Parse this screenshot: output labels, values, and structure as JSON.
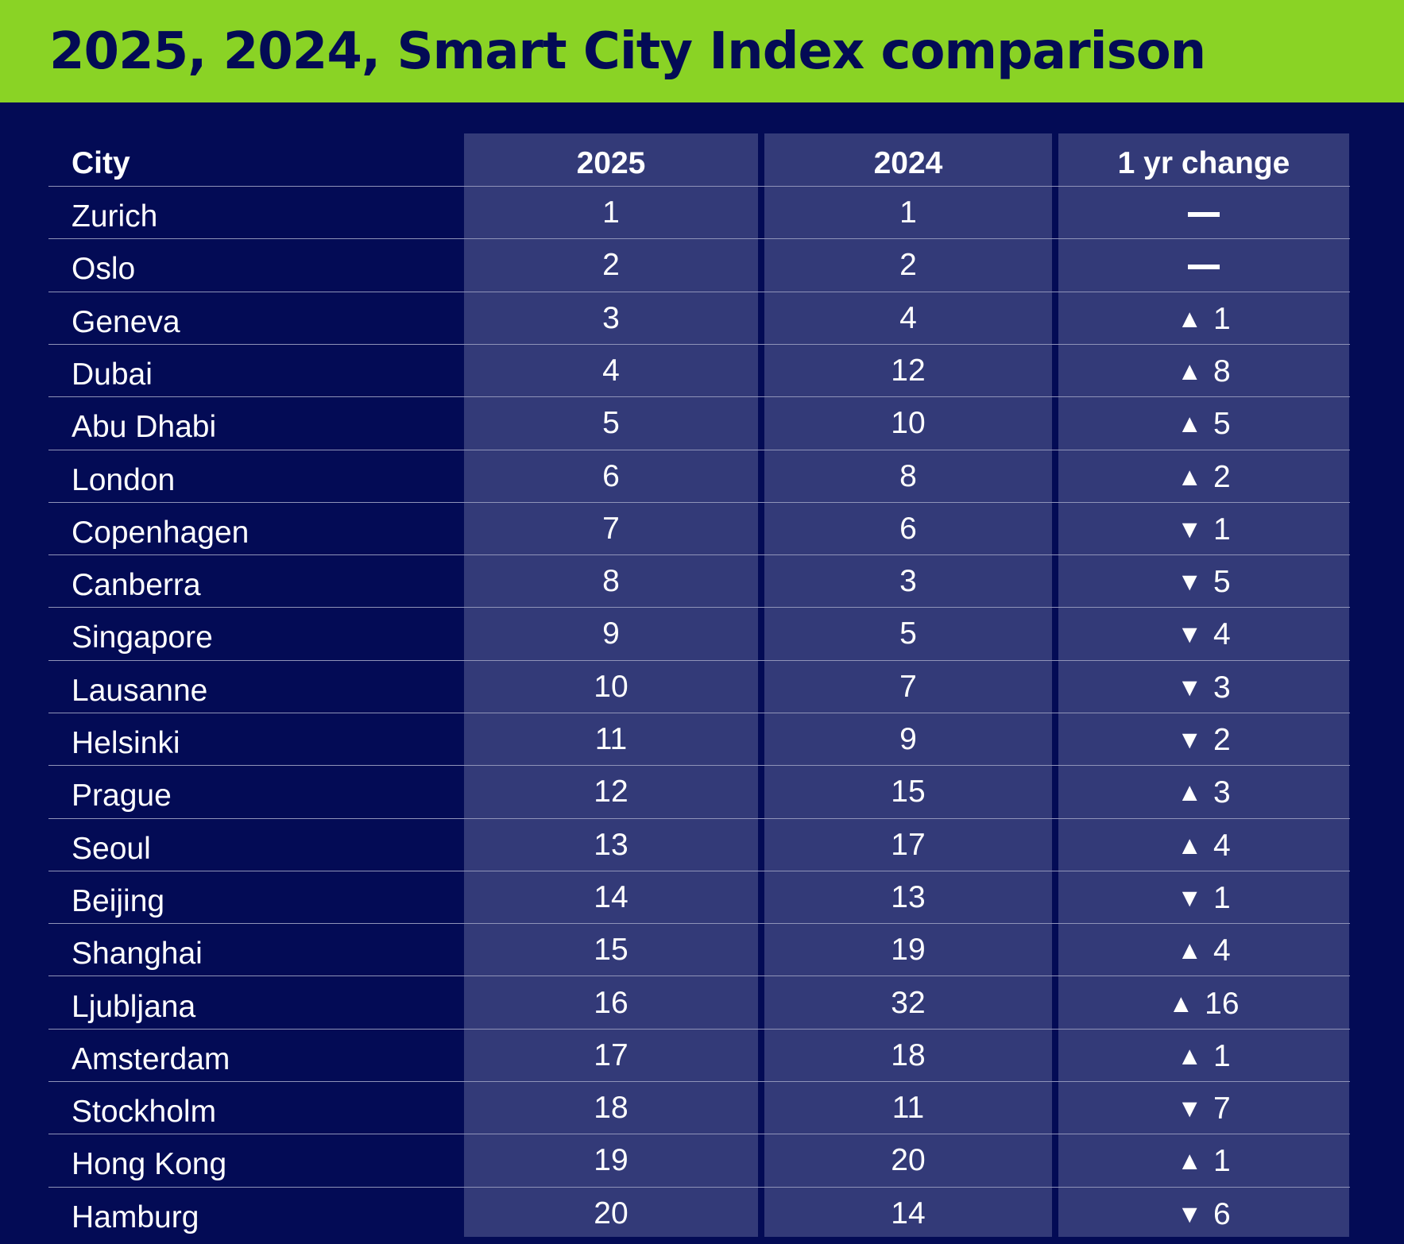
{
  "chart_data": {
    "type": "table",
    "title": "2025, 2024, Smart City Index comparison",
    "columns": [
      "City",
      "2025",
      "2024",
      "1 yr change"
    ],
    "rows": [
      {
        "city": "Zurich",
        "rank_2025": "1",
        "rank_2024": "1",
        "direction": "none",
        "change": ""
      },
      {
        "city": "Oslo",
        "rank_2025": "2",
        "rank_2024": "2",
        "direction": "none",
        "change": ""
      },
      {
        "city": "Geneva",
        "rank_2025": "3",
        "rank_2024": "4",
        "direction": "up",
        "change": "1"
      },
      {
        "city": "Dubai",
        "rank_2025": "4",
        "rank_2024": "12",
        "direction": "up",
        "change": "8"
      },
      {
        "city": "Abu Dhabi",
        "rank_2025": "5",
        "rank_2024": "10",
        "direction": "up",
        "change": "5"
      },
      {
        "city": "London",
        "rank_2025": "6",
        "rank_2024": "8",
        "direction": "up",
        "change": "2"
      },
      {
        "city": "Copenhagen",
        "rank_2025": "7",
        "rank_2024": "6",
        "direction": "down",
        "change": "1"
      },
      {
        "city": "Canberra",
        "rank_2025": "8",
        "rank_2024": "3",
        "direction": "down",
        "change": "5"
      },
      {
        "city": "Singapore",
        "rank_2025": "9",
        "rank_2024": "5",
        "direction": "down",
        "change": "4"
      },
      {
        "city": "Lausanne",
        "rank_2025": "10",
        "rank_2024": "7",
        "direction": "down",
        "change": "3"
      },
      {
        "city": "Helsinki",
        "rank_2025": "11",
        "rank_2024": "9",
        "direction": "down",
        "change": "2"
      },
      {
        "city": "Prague",
        "rank_2025": "12",
        "rank_2024": "15",
        "direction": "up",
        "change": "3"
      },
      {
        "city": "Seoul",
        "rank_2025": "13",
        "rank_2024": "17",
        "direction": "up",
        "change": "4"
      },
      {
        "city": "Beijing",
        "rank_2025": "14",
        "rank_2024": "13",
        "direction": "down",
        "change": "1"
      },
      {
        "city": "Shanghai",
        "rank_2025": "15",
        "rank_2024": "19",
        "direction": "up",
        "change": "4"
      },
      {
        "city": "Ljubljana",
        "rank_2025": "16",
        "rank_2024": "32",
        "direction": "up",
        "change": "16"
      },
      {
        "city": "Amsterdam",
        "rank_2025": "17",
        "rank_2024": "18",
        "direction": "up",
        "change": "1"
      },
      {
        "city": "Stockholm",
        "rank_2025": "18",
        "rank_2024": "11",
        "direction": "down",
        "change": "7"
      },
      {
        "city": "Hong Kong",
        "rank_2025": "19",
        "rank_2024": "20",
        "direction": "up",
        "change": "1"
      },
      {
        "city": "Hamburg",
        "rank_2025": "20",
        "rank_2024": "14",
        "direction": "down",
        "change": "6"
      }
    ]
  },
  "colors": {
    "header_bg": "#8ad325",
    "page_bg": "#030b55",
    "column_bg": "#333a78",
    "text": "#ffffff",
    "title_text": "#030b55"
  },
  "icons": {
    "up": "up-triangle-icon",
    "down": "down-triangle-icon",
    "none": "no-change-dash-icon"
  }
}
